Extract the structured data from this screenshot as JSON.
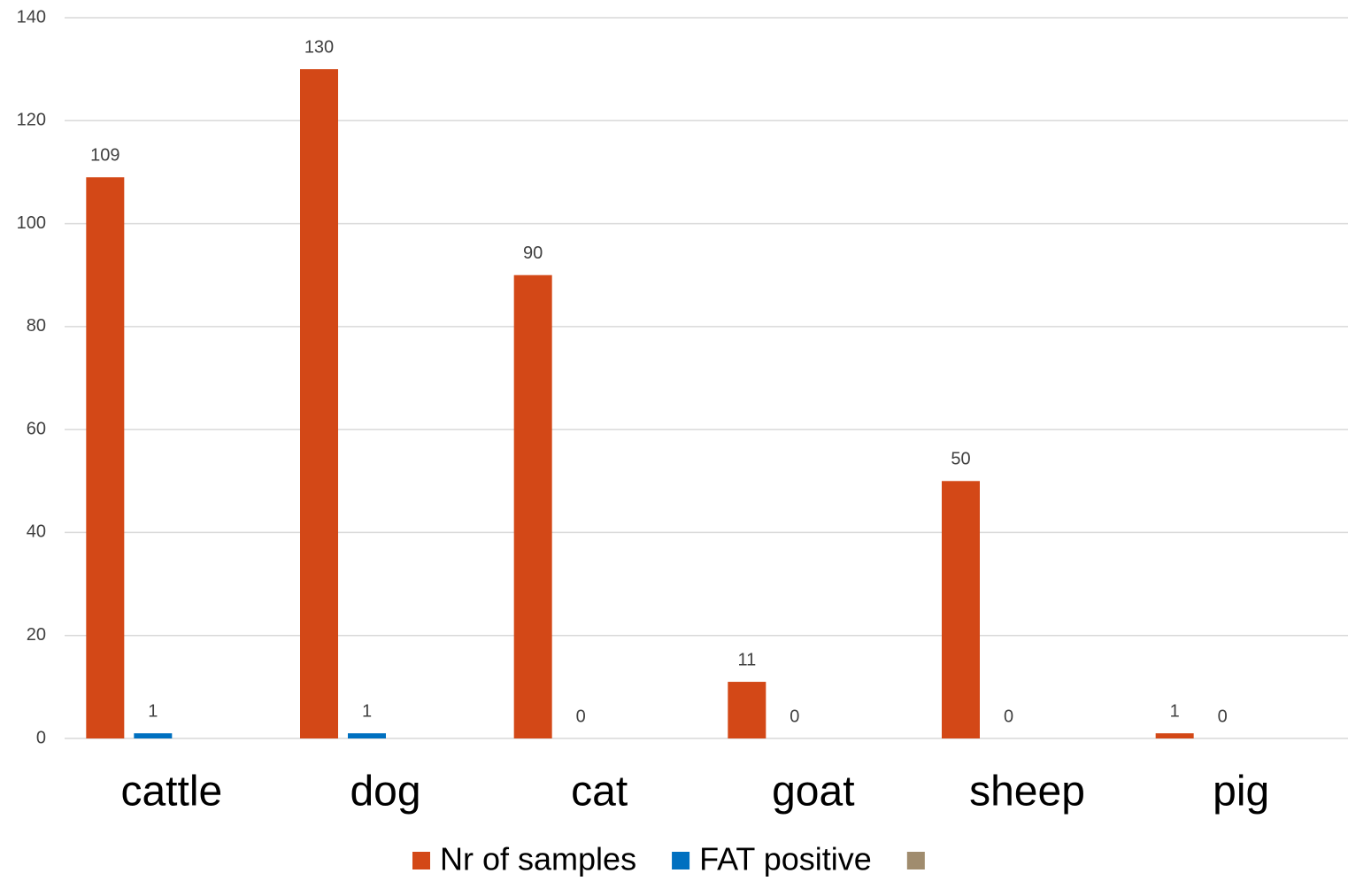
{
  "chart_data": {
    "type": "bar",
    "categories": [
      "cattle",
      "dog",
      "cat",
      "goat",
      "sheep",
      "pig"
    ],
    "series": [
      {
        "name": "Nr of samples",
        "color": "#d34817",
        "values": [
          109,
          130,
          90,
          11,
          50,
          1
        ]
      },
      {
        "name": "FAT positive",
        "color": "#0070c0",
        "values": [
          1,
          1,
          0,
          0,
          0,
          0
        ]
      },
      {
        "color": "#a08c6e",
        "values": [
          null,
          null,
          null,
          null,
          null,
          null
        ]
      }
    ],
    "ylim": [
      0,
      140
    ],
    "yticks": [
      0,
      20,
      40,
      60,
      80,
      100,
      120,
      140
    ],
    "grid": true,
    "legend": "bottom"
  }
}
